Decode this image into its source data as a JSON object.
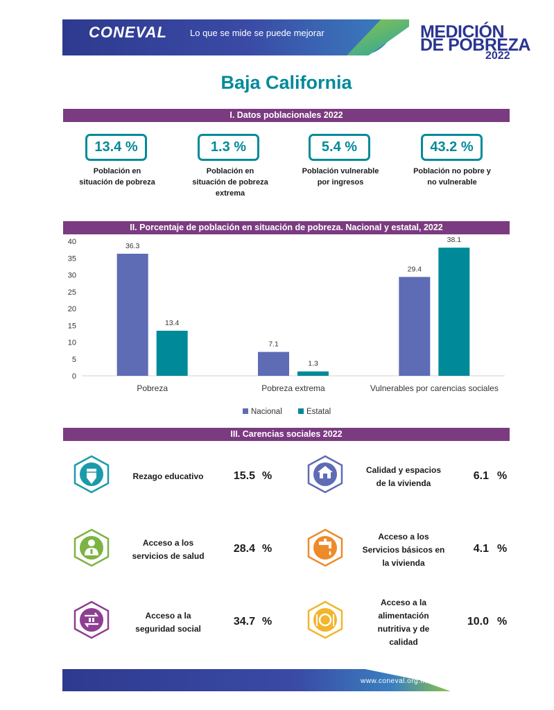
{
  "header": {
    "logo": "CONEVAL",
    "tagline": "Lo que se mide se puede mejorar",
    "brand_line1": "MEDICIÓN",
    "brand_line2": "DE POBREZA",
    "brand_year": "2022"
  },
  "title": "Baja California",
  "section1": {
    "title": "I. Datos poblacionales 2022",
    "kpis": [
      {
        "value": "13.4 %",
        "label_l1": "Población en",
        "label_l2": "situación de pobreza",
        "label_l3": ""
      },
      {
        "value": "1.3 %",
        "label_l1": "Población en",
        "label_l2": "situación de pobreza",
        "label_l3": "extrema"
      },
      {
        "value": "5.4 %",
        "label_l1": "Población vulnerable",
        "label_l2": "por ingresos",
        "label_l3": ""
      },
      {
        "value": "43.2 %",
        "label_l1": "Población no pobre y",
        "label_l2": "no vulnerable",
        "label_l3": ""
      }
    ]
  },
  "section2": {
    "title": "II. Porcentaje de población en situación de pobreza. Nacional y estatal, 2022"
  },
  "chart_data": {
    "type": "bar",
    "categories": [
      "Pobreza",
      "Pobreza extrema",
      "Vulnerables por carencias sociales"
    ],
    "series": [
      {
        "name": "Nacional",
        "values": [
          36.3,
          7.1,
          29.4
        ],
        "color": "#5e6bb5"
      },
      {
        "name": "Estatal",
        "values": [
          13.4,
          1.3,
          38.1
        ],
        "color": "#008a99"
      }
    ],
    "ylim": [
      0,
      40
    ],
    "yticks": [
      0,
      5,
      10,
      15,
      20,
      25,
      30,
      35,
      40
    ],
    "legend": "bottom",
    "grid": false
  },
  "section3": {
    "title": "III. Carencias sociales 2022",
    "unit": "%",
    "items": [
      {
        "label_l1": "Rezago educativo",
        "label_l2": "",
        "label_l3": "",
        "label_l4": "",
        "value": "15.5",
        "icon": "pencil-icon",
        "color": "#1a9aaa"
      },
      {
        "label_l1": "Calidad y espacios",
        "label_l2": "de la vivienda",
        "label_l3": "",
        "label_l4": "",
        "value": "6.1",
        "icon": "house-hands-icon",
        "color": "#5e6bb5"
      },
      {
        "label_l1": "Acceso a los",
        "label_l2": "servicios de salud",
        "label_l3": "",
        "label_l4": "",
        "value": "28.4",
        "icon": "doctor-icon",
        "color": "#7cb342"
      },
      {
        "label_l1": "Acceso a los",
        "label_l2": "Servicios básicos en",
        "label_l3": "la vivienda",
        "label_l4": "",
        "value": "4.1",
        "icon": "water-tap-icon",
        "color": "#ef8a2a"
      },
      {
        "label_l1": "Acceso a la",
        "label_l2": "seguridad social",
        "label_l3": "",
        "label_l4": "",
        "value": "34.7",
        "icon": "social-security-icon",
        "color": "#8e3f92"
      },
      {
        "label_l1": "Acceso a la",
        "label_l2": "alimentación",
        "label_l3": "nutritiva y de",
        "label_l4": "calidad",
        "value": "10.0",
        "icon": "plate-cutlery-icon",
        "color": "#f2b52b"
      }
    ]
  },
  "footer": {
    "url": "www.coneval.org.mx"
  }
}
